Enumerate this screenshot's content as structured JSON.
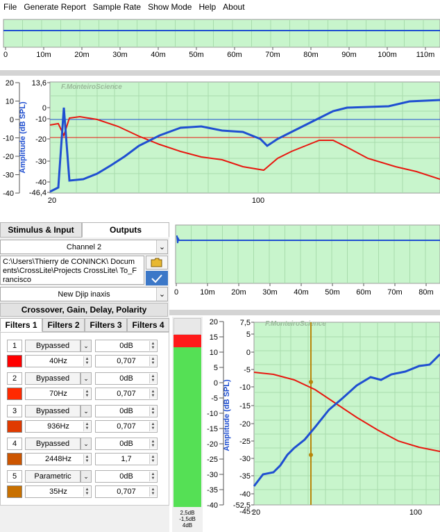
{
  "menu": [
    "File",
    "Generate Report",
    "Sample Rate",
    "Show Mode",
    "Help",
    "About"
  ],
  "top_time_plot": {
    "ticks": [
      "0",
      "10m",
      "20m",
      "30m",
      "40m",
      "50m",
      "60m",
      "70m",
      "80m",
      "90m",
      "100m",
      "110m"
    ]
  },
  "main_plot": {
    "watermark": "F.MonteiroScience",
    "ylabel": "Amplitude (dB SPL)",
    "left_ticks": [
      "20",
      "10",
      "0",
      "-10",
      "-20",
      "-30",
      "-40"
    ],
    "inner_ticks": [
      "13,6",
      "0",
      "-10",
      "-20",
      "-30",
      "-40",
      "-46,4"
    ],
    "x_ticks": [
      "20",
      "100"
    ]
  },
  "tabs": {
    "stimulus": "Stimulus & Input",
    "outputs": "Outputs"
  },
  "channel": "Channel 2",
  "path_text": "C:\\Users\\Thierry de CONINCK\\ Documents\\CrossLite\\Projects CrossLite\\ To_Francisco",
  "preset": "New Djip inaxis",
  "section_header": "Crossover, Gain, Delay, Polarity",
  "filter_tabs": [
    "Filters 1",
    "Filters 2",
    "Filters 3",
    "Filters 4"
  ],
  "filters": [
    {
      "num": "1",
      "type": "Bypassed",
      "gain": "0dB",
      "freq": "40Hz",
      "q": "0,707",
      "color": "#ff0000"
    },
    {
      "num": "2",
      "type": "Bypassed",
      "gain": "0dB",
      "freq": "70Hz",
      "q": "0,707",
      "color": "#ff2a00"
    },
    {
      "num": "3",
      "type": "Bypassed",
      "gain": "0dB",
      "freq": "936Hz",
      "q": "0,707",
      "color": "#e03a00"
    },
    {
      "num": "4",
      "type": "Bypassed",
      "gain": "0dB",
      "freq": "2448Hz",
      "q": "1,7",
      "color": "#cc5500"
    },
    {
      "num": "5",
      "type": "Parametric",
      "gain": "0dB",
      "freq": "35Hz",
      "q": "0,707",
      "color": "#c87000"
    }
  ],
  "meter": {
    "labels": [
      "2,5dB",
      "-1,5dB",
      "4dB"
    ]
  },
  "mid_time_plot": {
    "ticks": [
      "0",
      "10m",
      "20m",
      "30m",
      "40m",
      "50m",
      "60m",
      "70m",
      "80m"
    ]
  },
  "small_plot": {
    "watermark": "F.MonteiroScience",
    "ylabel": "Amplitude (dB SPL)",
    "left_ticks": [
      "20",
      "15",
      "10",
      "5",
      "0",
      "-5",
      "-10",
      "-15",
      "-20",
      "-25",
      "-30",
      "-35",
      "-40"
    ],
    "inner_ticks": [
      "7,5",
      "5",
      "0",
      "-5",
      "-10",
      "-15",
      "-20",
      "-25",
      "-30",
      "-35",
      "-40",
      "-45",
      "-52,5"
    ],
    "x_ticks": [
      "20",
      "100"
    ]
  },
  "colors": {
    "plot_bg": "#c8f5cc",
    "blue_trace": "#1f4fd1",
    "red_trace": "#e8170f",
    "cursor": "#b8860b",
    "meter_green": "#55e055",
    "meter_red": "#ff1a1a"
  }
}
